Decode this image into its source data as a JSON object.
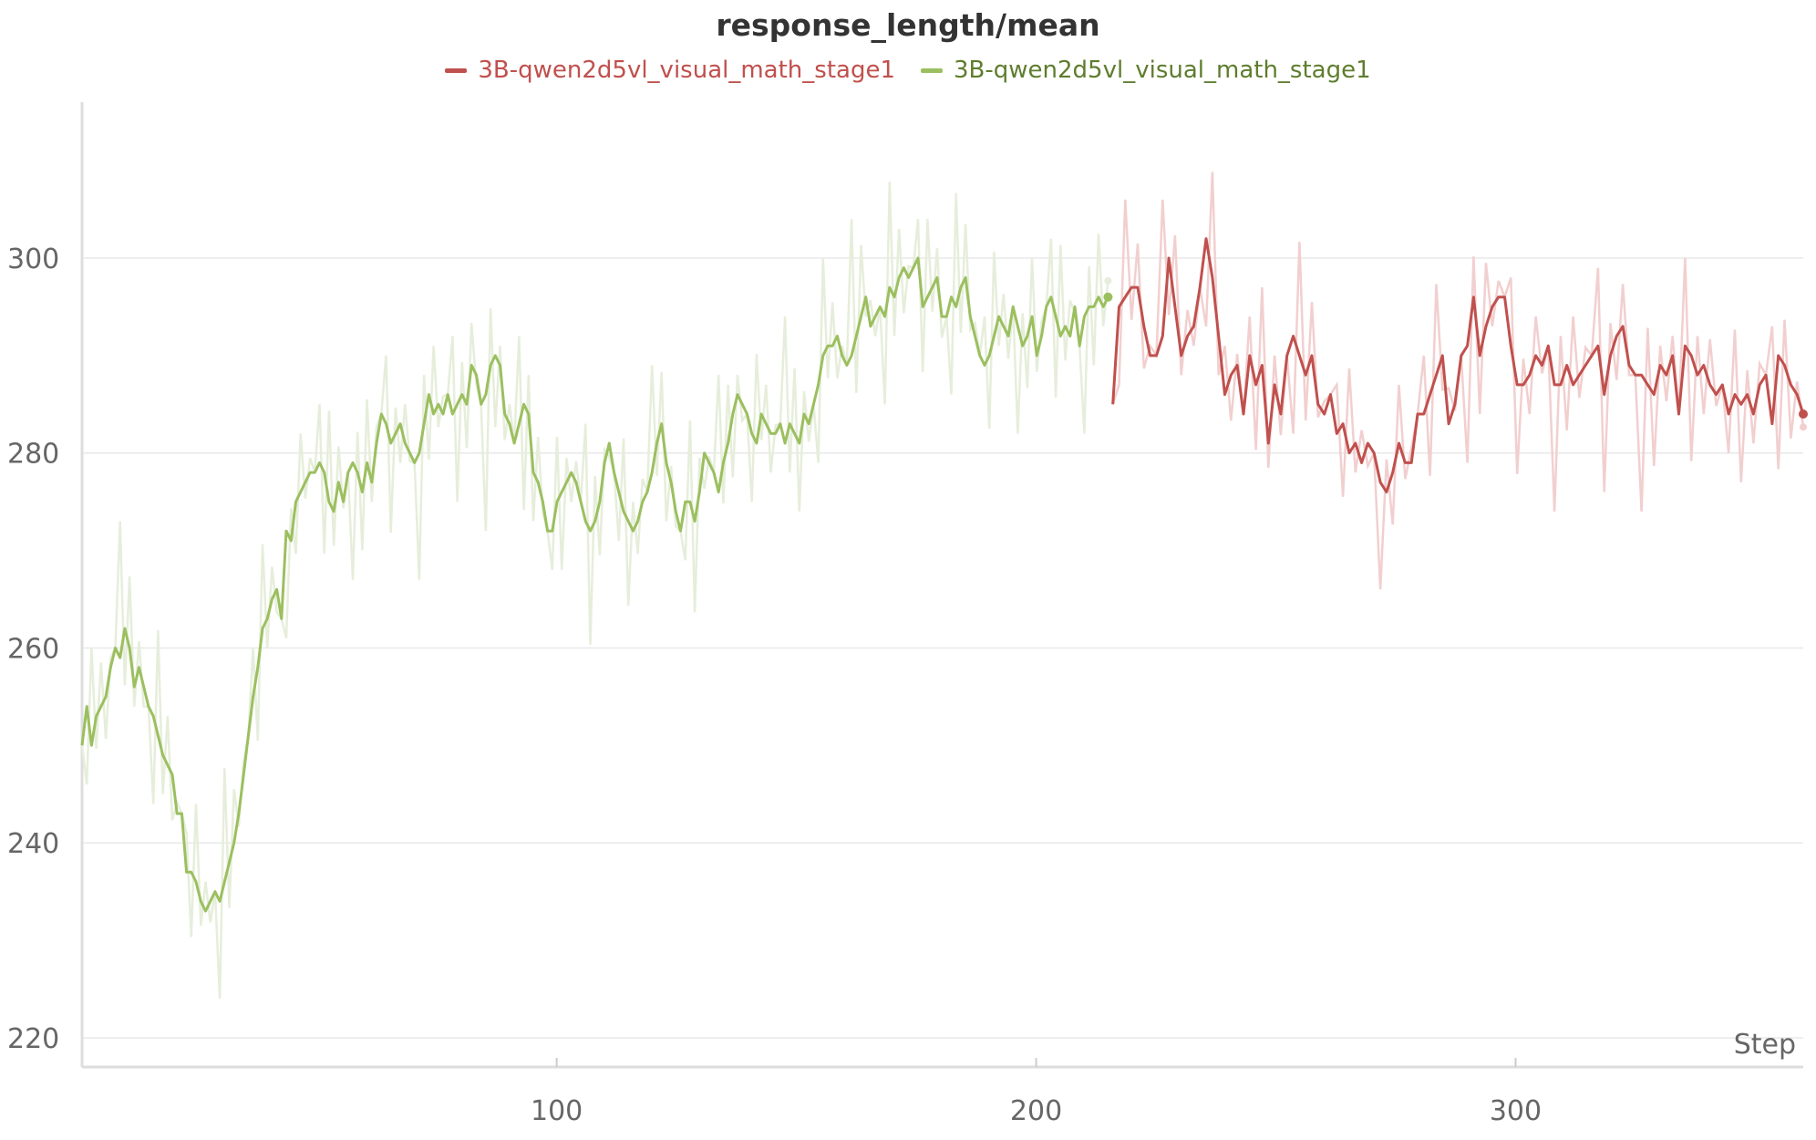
{
  "chart_data": {
    "type": "line",
    "title": "response_length/mean",
    "xlabel": "Step",
    "ylabel": "",
    "xlim": [
      1,
      360
    ],
    "ylim": [
      217,
      316
    ],
    "xticks": [
      100,
      200,
      300
    ],
    "yticks": [
      220,
      240,
      260,
      280,
      300
    ],
    "grid": true,
    "legend_position": "top-center",
    "series": [
      {
        "name": "3B-qwen2d5vl_visual_math_stage1",
        "color": "#c0504d",
        "x_start": 216,
        "x_end": 360,
        "values": [
          285,
          295,
          296,
          297,
          297,
          293,
          290,
          290,
          292,
          300,
          295,
          290,
          292,
          293,
          297,
          302,
          298,
          292,
          286,
          288,
          289,
          284,
          290,
          287,
          289,
          281,
          287,
          284,
          290,
          292,
          290,
          288,
          290,
          285,
          284,
          286,
          282,
          283,
          280,
          281,
          279,
          281,
          280,
          277,
          276,
          278,
          281,
          279,
          279,
          284,
          284,
          286,
          288,
          290,
          283,
          285,
          290,
          291,
          296,
          290,
          293,
          295,
          296,
          296,
          291,
          287,
          287,
          288,
          290,
          289,
          291,
          287,
          287,
          289,
          287,
          288,
          289,
          290,
          291,
          286,
          290,
          292,
          293,
          289,
          288,
          288,
          287,
          286,
          289,
          288,
          290,
          284,
          291,
          290,
          288,
          289,
          287,
          286,
          287,
          284,
          286,
          285,
          286,
          284,
          287,
          288,
          283,
          290,
          289,
          287,
          286,
          284
        ]
      },
      {
        "name": "3B-qwen2d5vl_visual_math_stage1",
        "color": "#9bbf5f",
        "x_start": 1,
        "x_end": 215,
        "values": [
          250,
          254,
          250,
          253,
          254,
          255,
          258,
          260,
          259,
          262,
          260,
          256,
          258,
          256,
          254,
          253,
          251,
          249,
          248,
          247,
          243,
          243,
          237,
          237,
          236,
          234,
          233,
          234,
          235,
          234,
          236,
          238,
          240,
          243,
          247,
          251,
          255,
          258,
          262,
          263,
          265,
          266,
          263,
          272,
          271,
          275,
          276,
          277,
          278,
          278,
          279,
          278,
          275,
          274,
          277,
          275,
          278,
          279,
          278,
          276,
          279,
          277,
          281,
          284,
          283,
          281,
          282,
          283,
          281,
          280,
          279,
          280,
          283,
          286,
          284,
          285,
          284,
          286,
          284,
          285,
          286,
          285,
          289,
          288,
          285,
          286,
          289,
          290,
          289,
          284,
          283,
          281,
          283,
          285,
          284,
          278,
          277,
          275,
          272,
          272,
          275,
          276,
          277,
          278,
          277,
          275,
          273,
          272,
          273,
          275,
          279,
          281,
          278,
          276,
          274,
          273,
          272,
          273,
          275,
          276,
          278,
          281,
          283,
          279,
          277,
          274,
          272,
          275,
          275,
          273,
          276,
          280,
          279,
          278,
          276,
          279,
          281,
          284,
          286,
          285,
          284,
          282,
          281,
          284,
          283,
          282,
          282,
          283,
          281,
          283,
          282,
          281,
          284,
          283,
          285,
          287,
          290,
          291,
          291,
          292,
          290,
          289,
          290,
          292,
          294,
          296,
          293,
          294,
          295,
          294,
          297,
          296,
          298,
          299,
          298,
          299,
          300,
          295,
          296,
          297,
          298,
          294,
          294,
          296,
          295,
          297,
          298,
          294,
          292,
          290,
          289,
          290,
          292,
          294,
          293,
          292,
          295,
          293,
          291,
          292,
          294,
          290,
          292,
          295,
          296,
          294,
          292,
          293,
          292,
          295,
          291,
          294,
          295,
          295,
          296,
          295,
          296
        ]
      }
    ]
  }
}
